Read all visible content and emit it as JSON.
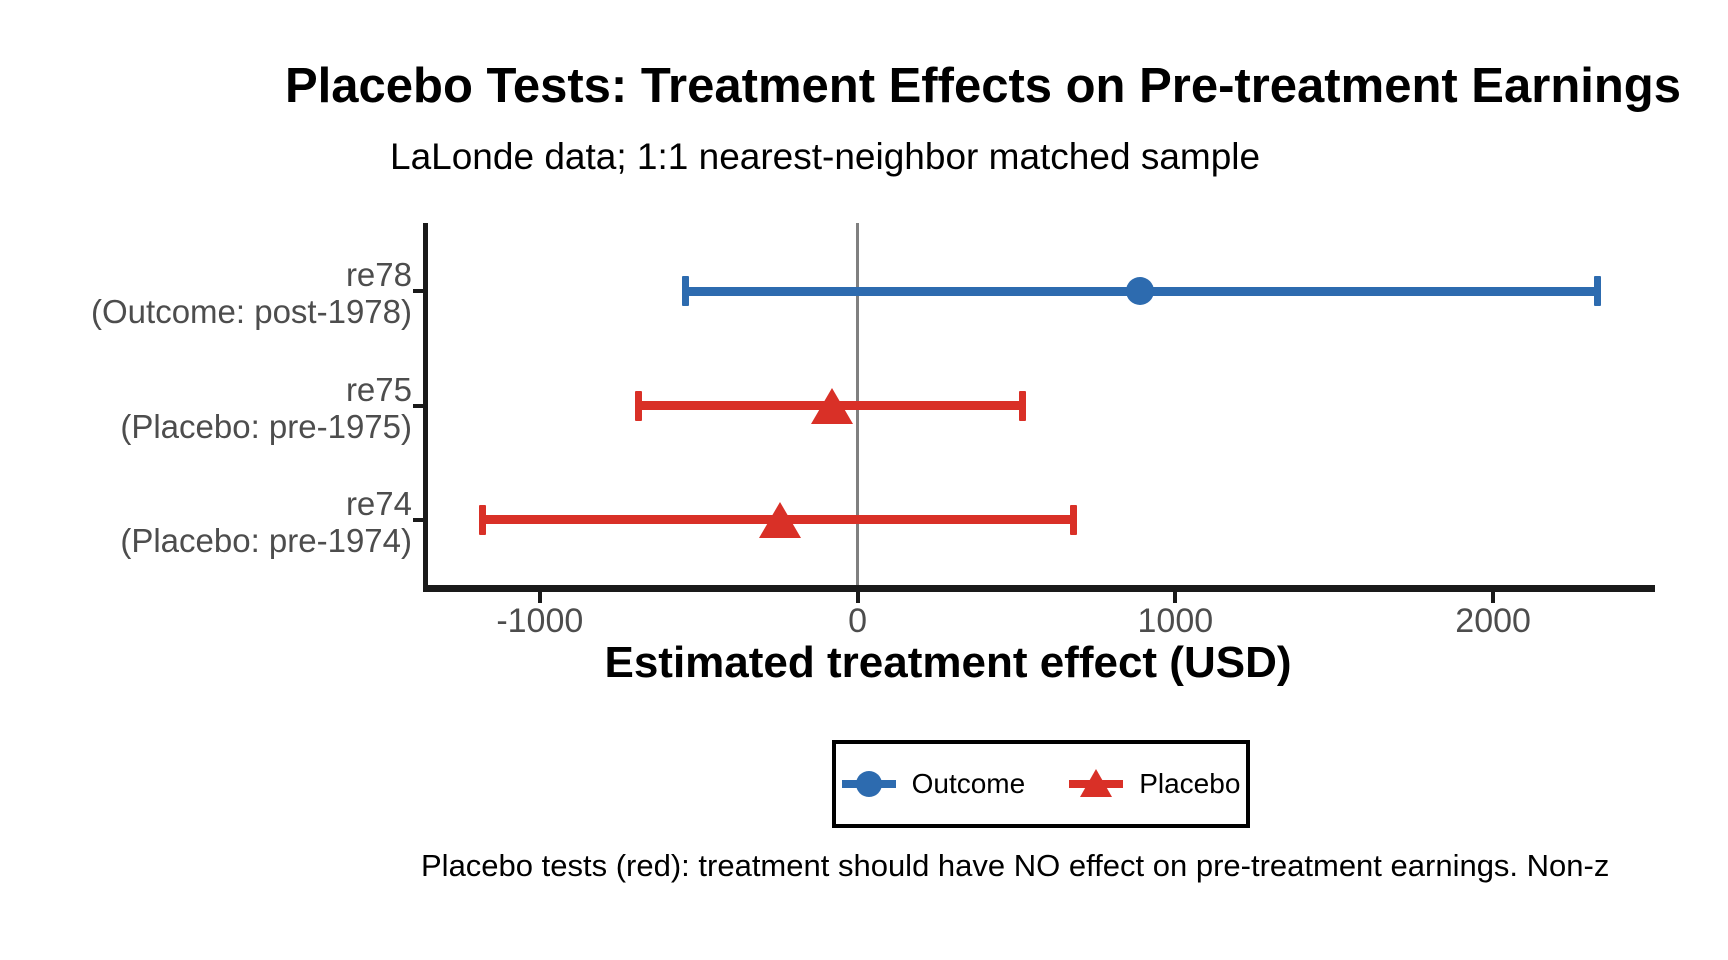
{
  "chart_data": {
    "type": "scatter",
    "style": "dot-and-whisker placebo-test plot with horizontal 95% CI error bars",
    "title": "Placebo Tests: Treatment Effects on Pre-treatment Earnings",
    "subtitle": "LaLonde data; 1:1 nearest-neighbor matched sample",
    "xlabel": "Estimated treatment effect (USD)",
    "caption": "Placebo tests (red): treatment should have NO effect on pre-treatment earnings. Non-z",
    "xlim": [
      -1355,
      2500
    ],
    "x_ticks": [
      "-1000",
      "0",
      "1000",
      "2000"
    ],
    "x_tick_values": [
      -1000,
      0,
      1000,
      2000
    ],
    "reference_line_x": 0,
    "grid": false,
    "legend_position": "bottom",
    "rows": [
      {
        "label_line1": "re78",
        "label_line2": "(Outcome: post-1978)",
        "group": "Outcome",
        "estimate": 890,
        "ci_low": -540,
        "ci_high": 2330
      },
      {
        "label_line1": "re75",
        "label_line2": "(Placebo: pre-1975)",
        "group": "Placebo",
        "estimate": -80,
        "ci_low": -690,
        "ci_high": 520
      },
      {
        "label_line1": "re74",
        "label_line2": "(Placebo: pre-1974)",
        "group": "Placebo",
        "estimate": -245,
        "ci_low": -1180,
        "ci_high": 680
      }
    ],
    "groups": {
      "Outcome": {
        "color": "#2D6BAF",
        "marker": "circle"
      },
      "Placebo": {
        "color": "#D93027",
        "marker": "triangle"
      }
    },
    "legend": [
      {
        "label": "Outcome",
        "group": "Outcome"
      },
      {
        "label": "Placebo",
        "group": "Placebo"
      }
    ],
    "colors": {
      "axis_line": "#1A1A1A",
      "tick_text": "#4D4D4D",
      "reference_line": "#808080",
      "text": "#000000",
      "background": "#FFFFFF"
    }
  }
}
